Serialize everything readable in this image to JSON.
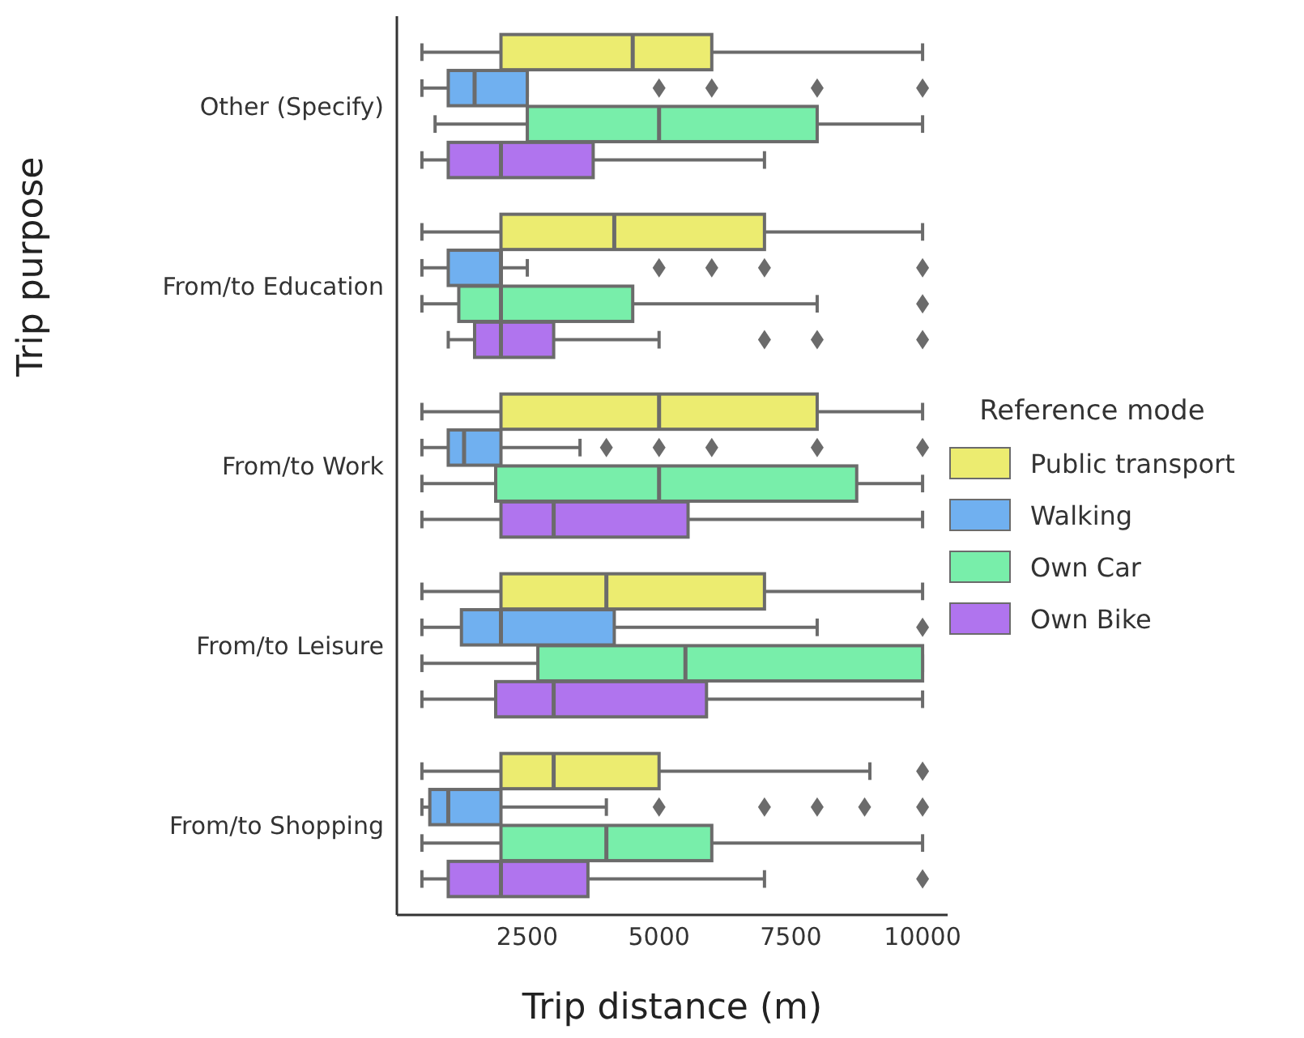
{
  "chart_data": {
    "type": "box",
    "orientation": "horizontal",
    "xlabel": "Trip distance (m)",
    "ylabel": "Trip purpose",
    "legend_title": "Reference mode",
    "legend": "right",
    "categories": [
      "Other (Specify)",
      "From/to Education",
      "From/to Work",
      "From/to Leisure",
      "From/to Shopping"
    ],
    "xlim": [
      25,
      10475
    ],
    "xticks": [
      2500,
      5000,
      7500,
      10000
    ],
    "series": [
      {
        "name": "Public transport",
        "color": "#ecec70",
        "boxes": [
          {
            "low": 500,
            "q1": 2000,
            "median": 4500,
            "q3": 6000,
            "high": 10000
          },
          {
            "low": 500,
            "q1": 2000,
            "median": 4150,
            "q3": 7000,
            "high": 10000
          },
          {
            "low": 500,
            "q1": 2000,
            "median": 5000,
            "q3": 8000,
            "high": 10000
          },
          {
            "low": 500,
            "q1": 2000,
            "median": 4000,
            "q3": 7000,
            "high": 10000
          },
          {
            "low": 500,
            "q1": 2000,
            "median": 3000,
            "q3": 5000,
            "high": 9000,
            "outliers": [
              10000
            ]
          }
        ]
      },
      {
        "name": "Walking",
        "color": "#70b0f0",
        "boxes": [
          {
            "low": 500,
            "q1": 1000,
            "median": 1500,
            "q3": 2500,
            "high": 2500,
            "outliers": [
              5000,
              6000,
              8000,
              10000
            ]
          },
          {
            "low": 500,
            "q1": 1000,
            "median": 2000,
            "q3": 2000,
            "high": 2500,
            "outliers": [
              5000,
              6000,
              7000,
              10000
            ]
          },
          {
            "low": 500,
            "q1": 1000,
            "median": 1300,
            "q3": 2000,
            "high": 3500,
            "outliers": [
              4000,
              5000,
              6000,
              8000,
              10000
            ]
          },
          {
            "low": 500,
            "q1": 1250,
            "median": 2000,
            "q3": 4150,
            "high": 8000,
            "outliers": [
              10000
            ]
          },
          {
            "low": 500,
            "q1": 650,
            "median": 1000,
            "q3": 2000,
            "high": 4000,
            "outliers": [
              5000,
              7000,
              8000,
              8900,
              10000
            ]
          }
        ]
      },
      {
        "name": "Own Car",
        "color": "#78eeaa",
        "boxes": [
          {
            "low": 750,
            "q1": 2500,
            "median": 5000,
            "q3": 8000,
            "high": 10000
          },
          {
            "low": 500,
            "q1": 1200,
            "median": 2000,
            "q3": 4500,
            "high": 8000,
            "outliers": [
              10000
            ]
          },
          {
            "low": 500,
            "q1": 1900,
            "median": 5000,
            "q3": 8750,
            "high": 10000
          },
          {
            "low": 500,
            "q1": 2700,
            "median": 5500,
            "q3": 10000,
            "high": 10000
          },
          {
            "low": 500,
            "q1": 2000,
            "median": 4000,
            "q3": 6000,
            "high": 10000
          }
        ]
      },
      {
        "name": "Own Bike",
        "color": "#b074ee",
        "boxes": [
          {
            "low": 500,
            "q1": 1000,
            "median": 2000,
            "q3": 3750,
            "high": 7000
          },
          {
            "low": 1000,
            "q1": 1500,
            "median": 2000,
            "q3": 3000,
            "high": 5000,
            "outliers": [
              7000,
              8000,
              10000
            ]
          },
          {
            "low": 500,
            "q1": 2000,
            "median": 3000,
            "q3": 5550,
            "high": 10000
          },
          {
            "low": 500,
            "q1": 1900,
            "median": 3000,
            "q3": 5900,
            "high": 10000
          },
          {
            "low": 500,
            "q1": 1000,
            "median": 2000,
            "q3": 3650,
            "high": 7000,
            "outliers": [
              10000
            ]
          }
        ]
      }
    ]
  }
}
